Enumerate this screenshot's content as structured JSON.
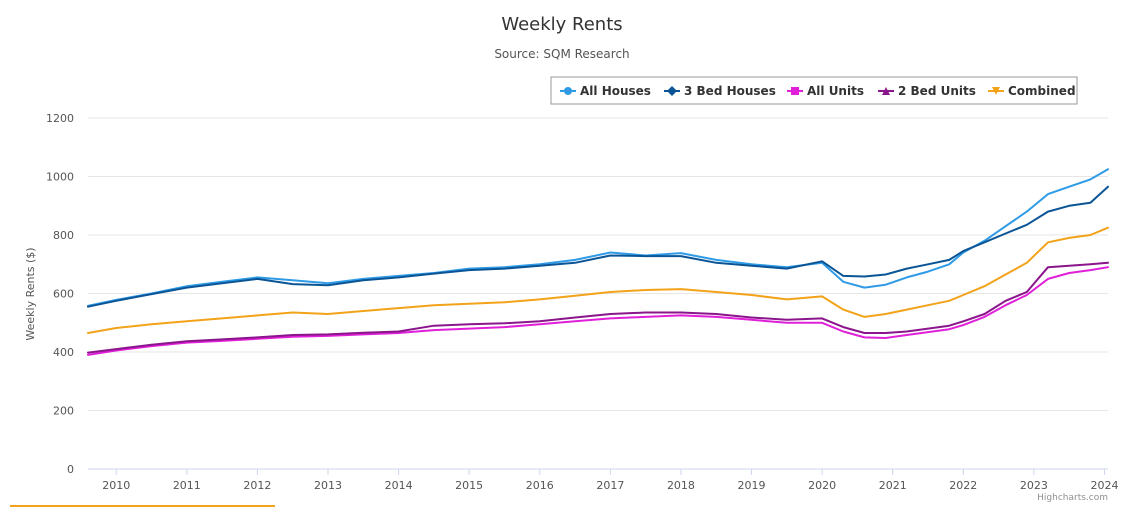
{
  "chart_data": {
    "type": "line",
    "title": "Weekly Rents",
    "subtitle": "Source: SQM Research",
    "xlabel": "",
    "ylabel": "Weekly Rents ($)",
    "ylim": [
      0,
      1200
    ],
    "xlim": [
      2009.6,
      2024.05
    ],
    "y_ticks": [
      0,
      200,
      400,
      600,
      800,
      1000,
      1200
    ],
    "x_ticks": [
      "2010",
      "2011",
      "2012",
      "2013",
      "2014",
      "2015",
      "2016",
      "2017",
      "2018",
      "2019",
      "2020",
      "2021",
      "2022",
      "2023",
      "2024"
    ],
    "grid": true,
    "legend_position": "top-right",
    "credit": "Highcharts.com",
    "x": [
      2009.6,
      2010,
      2010.5,
      2011,
      2011.5,
      2012,
      2012.5,
      2013,
      2013.5,
      2014,
      2014.5,
      2015,
      2015.5,
      2016,
      2016.5,
      2017,
      2017.5,
      2018,
      2018.5,
      2019,
      2019.5,
      2020,
      2020.3,
      2020.6,
      2020.9,
      2021.2,
      2021.5,
      2021.8,
      2022,
      2022.3,
      2022.6,
      2022.9,
      2023.2,
      2023.5,
      2023.8,
      2024.05
    ],
    "series": [
      {
        "name": "All Houses",
        "color": "#2f9be6",
        "marker": "circle",
        "values": [
          558,
          578,
          600,
          625,
          640,
          655,
          645,
          635,
          650,
          660,
          670,
          685,
          690,
          700,
          715,
          740,
          730,
          738,
          715,
          700,
          690,
          705,
          640,
          620,
          630,
          655,
          675,
          700,
          740,
          780,
          830,
          880,
          940,
          965,
          990,
          1025
        ]
      },
      {
        "name": "3 Bed Houses",
        "color": "#0b5596",
        "marker": "diamond",
        "values": [
          555,
          575,
          598,
          620,
          635,
          650,
          632,
          628,
          645,
          655,
          668,
          680,
          685,
          695,
          705,
          730,
          728,
          728,
          705,
          695,
          685,
          710,
          660,
          658,
          665,
          685,
          700,
          715,
          745,
          775,
          805,
          835,
          880,
          900,
          910,
          965
        ]
      },
      {
        "name": "All Units",
        "color": "#e020d8",
        "marker": "square",
        "values": [
          390,
          405,
          420,
          432,
          438,
          445,
          452,
          455,
          460,
          465,
          475,
          480,
          485,
          495,
          505,
          515,
          520,
          525,
          520,
          510,
          500,
          500,
          470,
          450,
          448,
          458,
          468,
          478,
          492,
          520,
          560,
          595,
          650,
          670,
          680,
          690
        ]
      },
      {
        "name": "2 Bed Units",
        "color": "#8b158b",
        "marker": "triangle",
        "values": [
          398,
          410,
          425,
          437,
          443,
          450,
          458,
          460,
          466,
          470,
          490,
          495,
          498,
          505,
          518,
          530,
          535,
          535,
          530,
          518,
          510,
          515,
          485,
          465,
          465,
          470,
          480,
          490,
          505,
          530,
          575,
          605,
          690,
          695,
          700,
          705
        ]
      },
      {
        "name": "Combined",
        "color": "#f2a31a",
        "marker": "triangle-down",
        "values": [
          465,
          482,
          495,
          505,
          515,
          525,
          535,
          530,
          540,
          550,
          560,
          565,
          570,
          580,
          592,
          605,
          612,
          615,
          605,
          595,
          580,
          590,
          545,
          520,
          530,
          545,
          560,
          575,
          595,
          625,
          665,
          705,
          775,
          790,
          800,
          825
        ]
      }
    ]
  }
}
